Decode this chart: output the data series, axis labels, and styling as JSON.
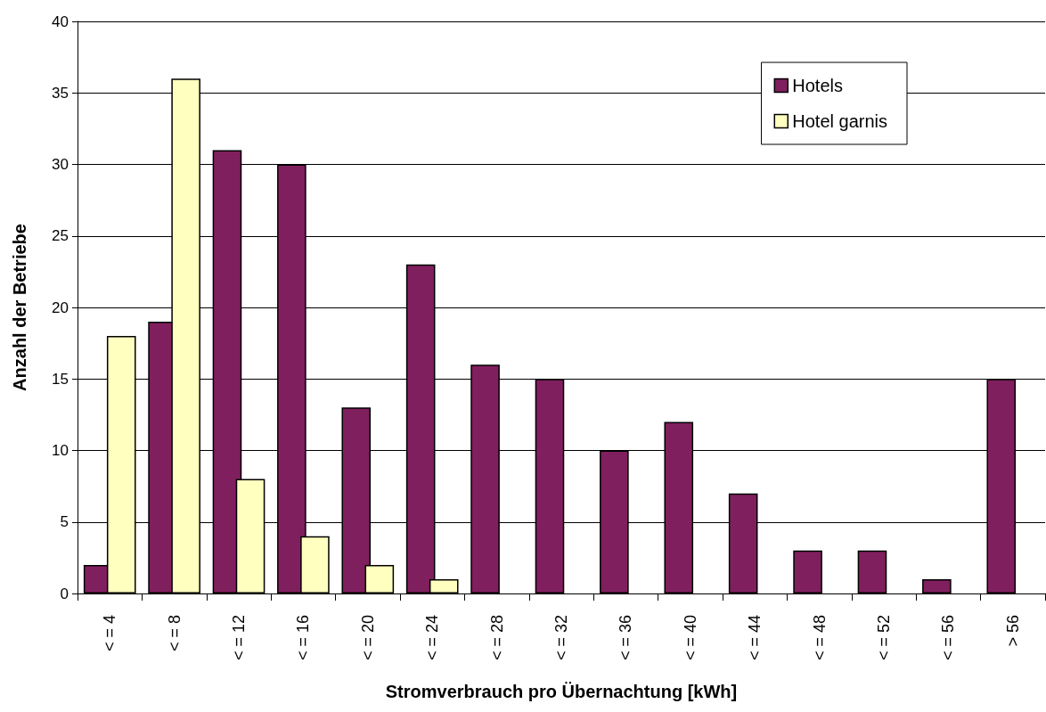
{
  "chart_data": {
    "type": "bar",
    "xlabel": "Stromverbrauch pro Übernachtung [kWh]",
    "ylabel": "Anzahl der Betriebe",
    "categories": [
      "< = 4",
      "< = 8",
      "< = 12",
      "< = 16",
      "< = 20",
      "< = 24",
      "< = 28",
      "< = 32",
      "< = 36",
      "< = 40",
      "< = 44",
      "< = 48",
      "< = 52",
      "< = 56",
      "> 56"
    ],
    "series": [
      {
        "name": "Hotels",
        "color": "#801f5e",
        "values": [
          2,
          19,
          31,
          30,
          13,
          23,
          16,
          15,
          10,
          12,
          7,
          3,
          3,
          1,
          15
        ]
      },
      {
        "name": "Hotel garnis",
        "color": "#ffffc0",
        "values": [
          18,
          36,
          8,
          4,
          2,
          1,
          null,
          null,
          null,
          null,
          null,
          null,
          null,
          null,
          null
        ]
      }
    ],
    "ylim": [
      0,
      40
    ],
    "yticks": [
      0,
      5,
      10,
      15,
      20,
      25,
      30,
      35,
      40
    ],
    "grid": "y",
    "legend": "top right"
  }
}
